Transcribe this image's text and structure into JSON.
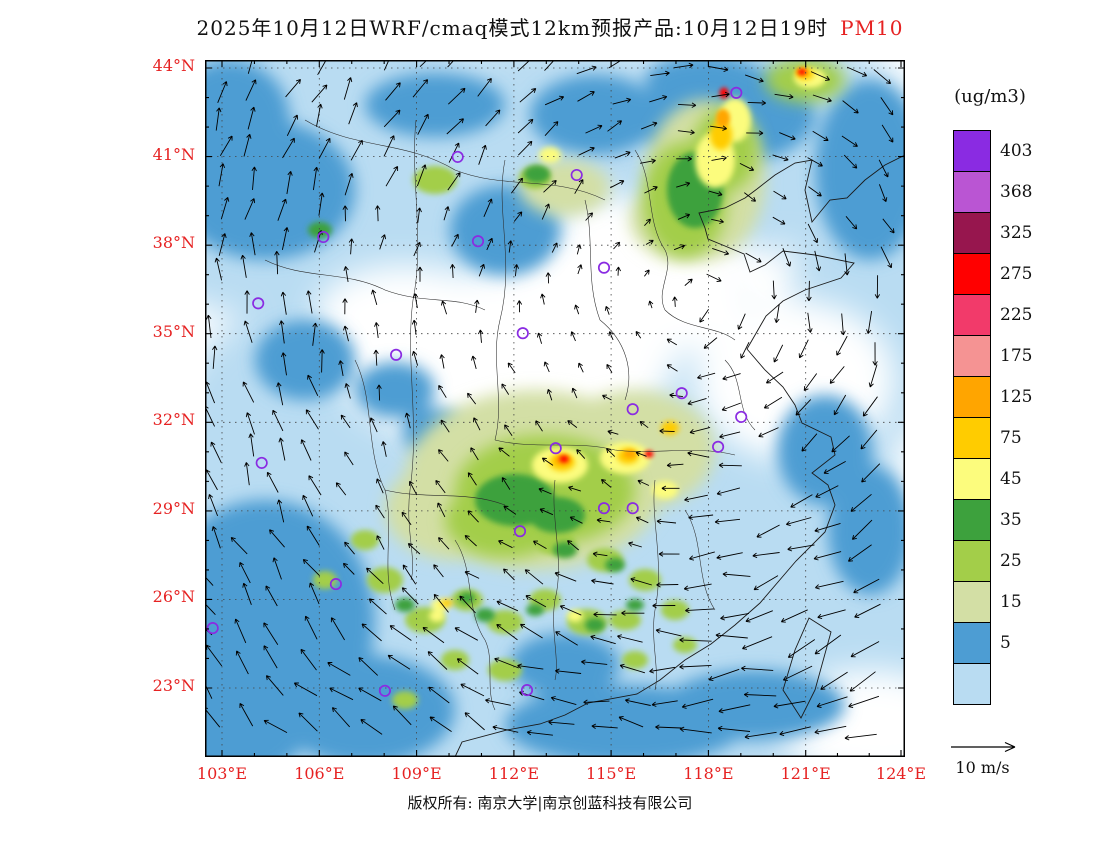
{
  "title": {
    "main": "2025年10月12日WRF/cmaq模式12km预报产品:10月12日19时",
    "pollutant": "PM10"
  },
  "axes": {
    "x_ticks": [
      "103°E",
      "106°E",
      "109°E",
      "112°E",
      "115°E",
      "118°E",
      "121°E",
      "124°E"
    ],
    "y_ticks": [
      "44°N",
      "41°N",
      "38°N",
      "35°N",
      "32°N",
      "29°N",
      "26°N",
      "23°N"
    ]
  },
  "legend": {
    "unit": "(ug/m3)",
    "levels": [
      "403",
      "368",
      "325",
      "275",
      "225",
      "175",
      "125",
      "75",
      "45",
      "35",
      "25",
      "15",
      "5"
    ],
    "colors": [
      "#8A2BE2",
      "#BA55D3",
      "#97164E",
      "#FF0000",
      "#F23A6A",
      "#F59393",
      "#FFA500",
      "#FFCC00",
      "#FCFC7D",
      "#3DA13D",
      "#A3CE49",
      "#D3DFA5",
      "#4D9DD3",
      "#B9DCF2"
    ]
  },
  "wind": {
    "reference_label": "10 m/s"
  },
  "footer": {
    "copyright": "版权所有: 南京大学|南京创蓝科技有限公司"
  },
  "colors": {
    "axis_label": "#e62222",
    "station_marker": "#8A2BE2"
  },
  "stations": [
    [
      0.361,
      0.139
    ],
    [
      0.531,
      0.165
    ],
    [
      0.759,
      0.047
    ],
    [
      0.169,
      0.254
    ],
    [
      0.39,
      0.26
    ],
    [
      0.57,
      0.298
    ],
    [
      0.076,
      0.349
    ],
    [
      0.454,
      0.392
    ],
    [
      0.273,
      0.423
    ],
    [
      0.611,
      0.501
    ],
    [
      0.681,
      0.478
    ],
    [
      0.733,
      0.555
    ],
    [
      0.766,
      0.512
    ],
    [
      0.081,
      0.578
    ],
    [
      0.501,
      0.557
    ],
    [
      0.611,
      0.643
    ],
    [
      0.57,
      0.643
    ],
    [
      0.45,
      0.676
    ],
    [
      0.187,
      0.752
    ],
    [
      0.011,
      0.815
    ],
    [
      0.257,
      0.905
    ],
    [
      0.46,
      0.904
    ]
  ]
}
